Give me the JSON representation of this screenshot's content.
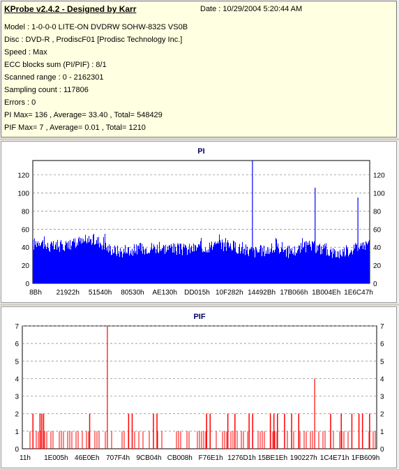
{
  "app": {
    "title": "KProbe v2.4.2 - Designed by Karr"
  },
  "info": {
    "date_label": "Date :",
    "date_value": "10/29/2004 5:20:44 AM",
    "lines": [
      "Model : 1-0-0-0 LITE-ON DVDRW SOHW-832S  VS0B",
      "Disc : DVD-R , ProdiscF01 [Prodisc Technology Inc.]",
      "Speed : Max",
      "ECC blocks sum (PI/PIF) : 8/1",
      "Scanned range : 0 - 2162301",
      "Sampling count : 117806",
      "Errors : 0",
      "PI Max= 136 , Average= 33.40 , Total= 548429",
      "PIF Max= 7 , Average= 0.01 , Total= 1210"
    ]
  },
  "colors": {
    "pi_bar": "#0000ff",
    "pif_bar": "#ff0000",
    "grid": "#808080",
    "plot_bg": "#ffffff"
  },
  "chart_data": [
    {
      "type": "bar",
      "title": "PI",
      "ylim": [
        0,
        136
      ],
      "yticks": [
        0,
        20,
        40,
        60,
        80,
        100,
        120
      ],
      "xticklabels": [
        "8Bh",
        "21922h",
        "51540h",
        "80530h",
        "AE130h",
        "DD015h",
        "10F282h",
        "14492Bh",
        "17B066h",
        "1B004Eh",
        "1E6C47h"
      ],
      "grid": true,
      "profile": [
        [
          0,
          50
        ],
        [
          0.02,
          55
        ],
        [
          0.04,
          48
        ],
        [
          0.07,
          47
        ],
        [
          0.1,
          50
        ],
        [
          0.14,
          52
        ],
        [
          0.18,
          55
        ],
        [
          0.2,
          53
        ],
        [
          0.22,
          46
        ],
        [
          0.26,
          42
        ],
        [
          0.3,
          44
        ],
        [
          0.35,
          47
        ],
        [
          0.4,
          46
        ],
        [
          0.45,
          44
        ],
        [
          0.5,
          47
        ],
        [
          0.55,
          49
        ],
        [
          0.6,
          48
        ],
        [
          0.62,
          44
        ],
        [
          0.66,
          42
        ],
        [
          0.7,
          44
        ],
        [
          0.74,
          47
        ],
        [
          0.76,
          40
        ],
        [
          0.78,
          44
        ],
        [
          0.82,
          48
        ],
        [
          0.86,
          45
        ],
        [
          0.9,
          40
        ],
        [
          0.94,
          44
        ],
        [
          0.97,
          48
        ],
        [
          1.0,
          52
        ]
      ],
      "spikes": [
        [
          0.652,
          136
        ],
        [
          0.838,
          106
        ],
        [
          0.965,
          95
        ]
      ]
    },
    {
      "type": "bar",
      "title": "PIF",
      "ylim": [
        0,
        7
      ],
      "yticks": [
        0,
        1,
        2,
        3,
        4,
        5,
        6,
        7
      ],
      "xticklabels": [
        "11h",
        "1E005h",
        "46E0Eh",
        "707F4h",
        "9CB04h",
        "CB008h",
        "F76E1h",
        "1276D1h",
        "15BE1Eh",
        "190227h",
        "1C4E71h",
        "1FB609h"
      ],
      "grid": true,
      "spikes": [
        [
          0.24,
          7
        ],
        [
          0.825,
          4
        ]
      ],
      "twos": [
        0.03,
        0.05,
        0.055,
        0.06,
        0.19,
        0.3,
        0.31,
        0.37,
        0.38,
        0.52,
        0.53,
        0.58,
        0.6,
        0.64,
        0.65,
        0.7,
        0.71,
        0.72,
        0.74,
        0.76,
        0.78,
        0.87,
        0.9,
        0.93,
        0.95,
        0.96,
        0.98
      ]
    }
  ]
}
